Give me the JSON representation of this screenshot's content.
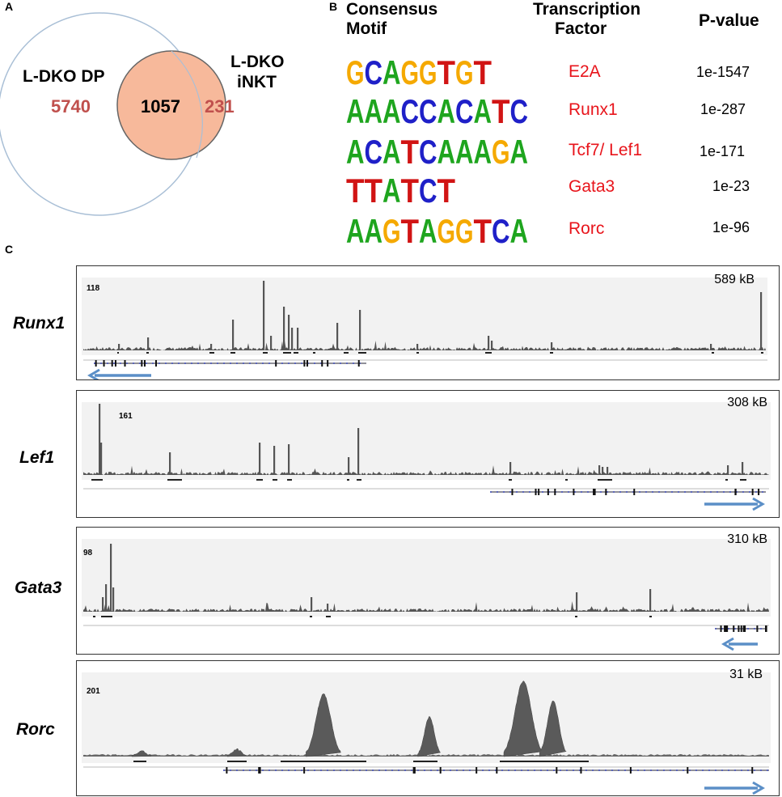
{
  "panels": {
    "a": "A",
    "b": "B",
    "c": "C"
  },
  "venn": {
    "left_label": "L-DKO DP",
    "right_label_line1": "L-DKO",
    "right_label_line2": "iNKT",
    "left_only": "5740",
    "overlap": "1057",
    "right_only": "231",
    "colors": {
      "left_circle_stroke": "#a9bfd6",
      "right_fill": "#f7b99b",
      "right_stroke": "#666666",
      "count_color": "#c0504d"
    }
  },
  "motif_table": {
    "headers": {
      "motif_line1": "Consensus",
      "motif_line2": "Motif",
      "tf_line1": "Transcription",
      "tf_line2": "Factor",
      "pvalue": "P-value"
    },
    "rows": [
      {
        "motif": "GCAGGTGT",
        "factor": "E2A",
        "pvalue": "1e-1547"
      },
      {
        "motif": "AAACCACATC",
        "factor": "Runx1",
        "pvalue": "1e-287"
      },
      {
        "motif": "ACATCAAAGA",
        "factor": "Tcf7/ Lef1",
        "pvalue": "1e-171"
      },
      {
        "motif": "TTATCT",
        "factor": "Gata3",
        "pvalue": "1e-23"
      },
      {
        "motif": "AAGTAGGTCA",
        "factor": "Rorc",
        "pvalue": "1e-96"
      }
    ],
    "base_colors": {
      "A": "#1ea51e",
      "C": "#1f20c8",
      "G": "#f5a900",
      "T": "#d11414"
    }
  },
  "tracks": [
    {
      "gene": "Runx1",
      "scale": "118",
      "span": "589 kB",
      "direction": "left"
    },
    {
      "gene": "Lef1",
      "scale": "161",
      "span": "308 kB",
      "direction": "right"
    },
    {
      "gene": "Gata3",
      "scale": "98",
      "span": "310 kB",
      "direction": "left"
    },
    {
      "gene": "Rorc",
      "scale": "201",
      "span": "31 kB",
      "direction": "right"
    }
  ],
  "arrow_color": "#5b8fc7"
}
